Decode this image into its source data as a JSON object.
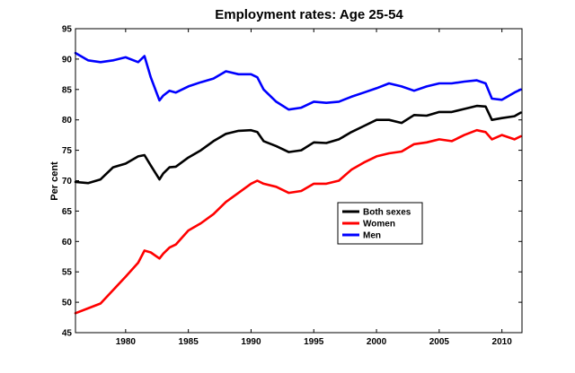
{
  "chart_data": {
    "type": "line",
    "title": "Employment rates: Age 25-54",
    "xlabel": "",
    "ylabel": "Per cent",
    "xlim": [
      1976,
      2011.6
    ],
    "ylim": [
      45,
      95
    ],
    "xticks": [
      1980,
      1985,
      1990,
      1995,
      2000,
      2005,
      2010
    ],
    "xtick_labels": [
      "1980",
      "1985",
      "1990",
      "1995",
      "2000",
      "2005",
      "2010"
    ],
    "yticks": [
      45,
      50,
      55,
      60,
      65,
      70,
      75,
      80,
      85,
      90,
      95
    ],
    "ytick_labels": [
      "45",
      "50",
      "55",
      "60",
      "65",
      "70",
      "75",
      "80",
      "85",
      "90",
      "95"
    ],
    "grid": false,
    "legend_position": "center-right",
    "series": [
      {
        "name": "Both sexes",
        "color": "#000000",
        "x": [
          1976,
          1977,
          1978,
          1979,
          1980,
          1981,
          1981.5,
          1982,
          1982.7,
          1983,
          1983.5,
          1984,
          1985,
          1986,
          1987,
          1988,
          1989,
          1990,
          1990.5,
          1991,
          1992,
          1993,
          1994,
          1995,
          1996,
          1997,
          1998,
          1999,
          2000,
          2001,
          2002,
          2003,
          2004,
          2005,
          2006,
          2007,
          2008,
          2008.7,
          2009.2,
          2010,
          2011,
          2011.5
        ],
        "y": [
          69.8,
          69.6,
          70.2,
          72.2,
          72.8,
          74.0,
          74.2,
          72.5,
          70.2,
          71.2,
          72.2,
          72.3,
          73.8,
          75.0,
          76.5,
          77.7,
          78.2,
          78.3,
          78.0,
          76.5,
          75.7,
          74.7,
          75.0,
          76.3,
          76.2,
          76.8,
          78.0,
          79.0,
          80.0,
          80.0,
          79.5,
          80.8,
          80.7,
          81.3,
          81.3,
          81.8,
          82.3,
          82.2,
          80.0,
          80.3,
          80.6,
          81.2
        ]
      },
      {
        "name": "Women",
        "color": "#ff0000",
        "x": [
          1976,
          1977,
          1978,
          1979,
          1980,
          1981,
          1981.5,
          1982,
          1982.7,
          1983,
          1983.5,
          1984,
          1985,
          1986,
          1987,
          1988,
          1989,
          1990,
          1990.5,
          1991,
          1992,
          1993,
          1994,
          1995,
          1996,
          1997,
          1998,
          1999,
          2000,
          2001,
          2002,
          2003,
          2004,
          2005,
          2006,
          2007,
          2008,
          2008.7,
          2009.2,
          2010,
          2011,
          2011.5
        ],
        "y": [
          48.2,
          49.0,
          49.8,
          52.0,
          54.2,
          56.5,
          58.5,
          58.2,
          57.2,
          58.0,
          59.0,
          59.5,
          61.8,
          63.0,
          64.5,
          66.5,
          68.0,
          69.5,
          70.0,
          69.5,
          69.0,
          68.0,
          68.3,
          69.5,
          69.5,
          70.0,
          71.8,
          73.0,
          74.0,
          74.5,
          74.8,
          76.0,
          76.3,
          76.8,
          76.5,
          77.5,
          78.3,
          78.0,
          76.8,
          77.5,
          76.8,
          77.3
        ]
      },
      {
        "name": "Men",
        "color": "#0000ff",
        "x": [
          1976,
          1977,
          1978,
          1979,
          1980,
          1981,
          1981.5,
          1982,
          1982.7,
          1983,
          1983.5,
          1984,
          1985,
          1986,
          1987,
          1988,
          1989,
          1990,
          1990.5,
          1991,
          1992,
          1993,
          1994,
          1995,
          1996,
          1997,
          1998,
          1999,
          2000,
          2001,
          2002,
          2003,
          2004,
          2005,
          2006,
          2007,
          2008,
          2008.7,
          2009.2,
          2010,
          2011,
          2011.5
        ],
        "y": [
          91.0,
          89.8,
          89.5,
          89.8,
          90.3,
          89.5,
          90.5,
          87.0,
          83.2,
          84.0,
          84.8,
          84.5,
          85.5,
          86.2,
          86.8,
          88.0,
          87.5,
          87.5,
          87.0,
          85.0,
          83.0,
          81.7,
          82.0,
          83.0,
          82.8,
          83.0,
          83.8,
          84.5,
          85.2,
          86.0,
          85.5,
          84.8,
          85.5,
          86.0,
          86.0,
          86.3,
          86.5,
          86.0,
          83.5,
          83.3,
          84.5,
          85.0
        ]
      }
    ]
  }
}
